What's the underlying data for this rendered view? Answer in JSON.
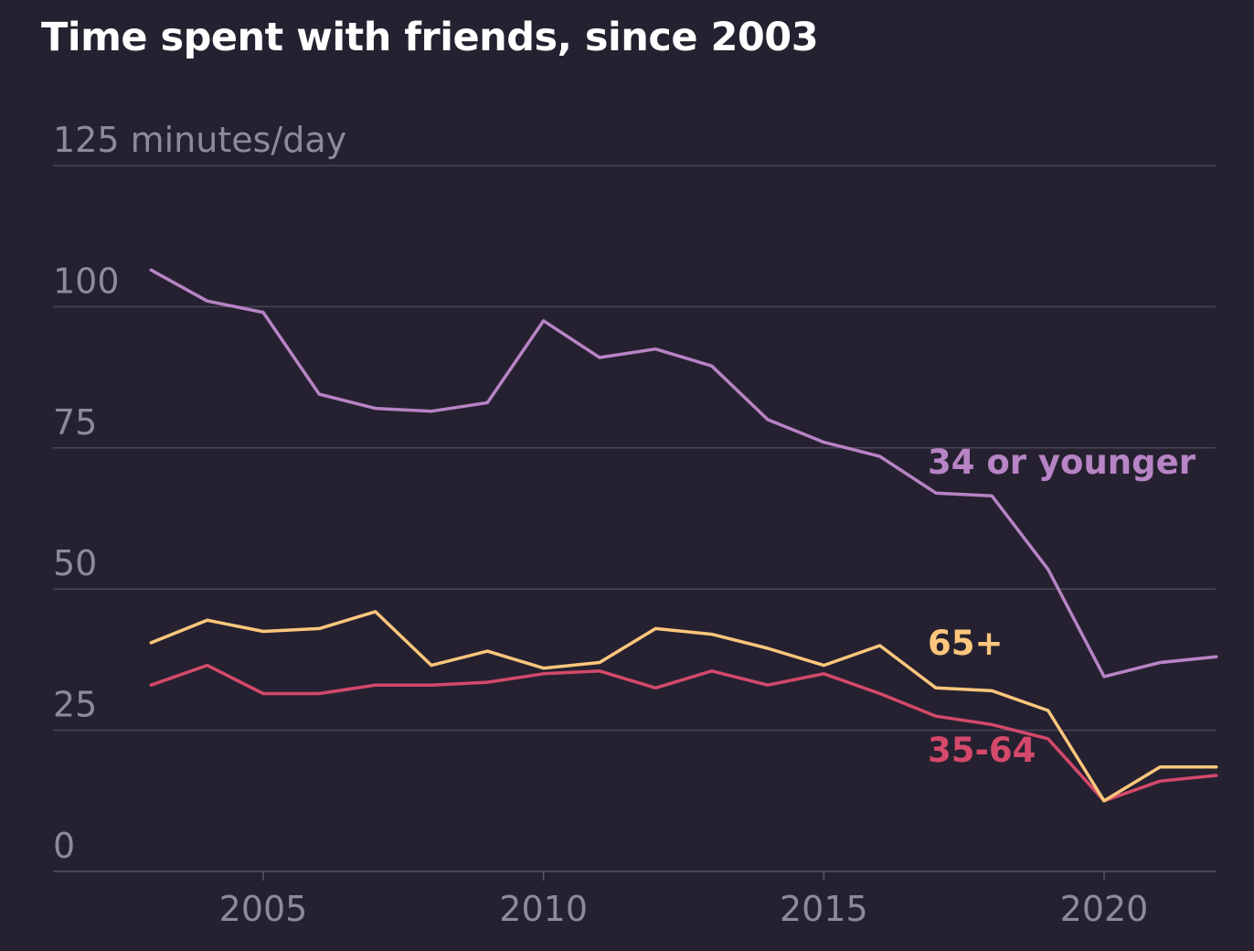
{
  "title": "Time spent with friends, since 2003",
  "colors": {
    "background": "#262130",
    "grid": "#4a4556",
    "axis_text": "#8f8a99",
    "title": "#ffffff"
  },
  "chart_data": {
    "type": "line",
    "title": "Time spent with friends, since 2003",
    "xlabel": "",
    "ylabel": "minutes/day",
    "xlim": [
      2001.25,
      2022
    ],
    "ylim": [
      0,
      125
    ],
    "y_ticks": [
      {
        "value": 0,
        "label": "0"
      },
      {
        "value": 25,
        "label": "25"
      },
      {
        "value": 50,
        "label": "50"
      },
      {
        "value": 75,
        "label": "75"
      },
      {
        "value": 100,
        "label": "100"
      },
      {
        "value": 125,
        "label": "125 minutes/day"
      }
    ],
    "x_ticks": [
      {
        "value": 2005,
        "label": "2005"
      },
      {
        "value": 2010,
        "label": "2010"
      },
      {
        "value": 2015,
        "label": "2015"
      },
      {
        "value": 2020,
        "label": "2020"
      }
    ],
    "grid": true,
    "x": [
      2003,
      2004,
      2005,
      2006,
      2007,
      2008,
      2009,
      2010,
      2011,
      2012,
      2013,
      2014,
      2015,
      2016,
      2017,
      2018,
      2019,
      2020,
      2021,
      2022
    ],
    "series": [
      {
        "name": "34 or younger",
        "color": "#b784c5",
        "label_value": 72.5,
        "values": [
          106.5,
          101,
          99,
          84.5,
          82,
          81.5,
          83,
          97.5,
          91,
          92.5,
          89.5,
          80,
          76,
          73.5,
          67,
          66.5,
          53.5,
          34.5,
          37,
          38
        ]
      },
      {
        "name": "65+",
        "color": "#fcc77d",
        "label_value": 40.5,
        "values": [
          40.5,
          44.5,
          42.5,
          43,
          46,
          36.5,
          39,
          36,
          37,
          43,
          42,
          39.5,
          36.5,
          40,
          32.5,
          32,
          28.5,
          12.5,
          18.5,
          18.5
        ]
      },
      {
        "name": "35-64",
        "color": "#d4496b",
        "label_value": 21.5,
        "values": [
          33,
          36.5,
          31.5,
          31.5,
          33,
          33,
          33.5,
          35,
          35.5,
          32.5,
          35.5,
          33,
          35,
          31.5,
          27.5,
          26,
          23.5,
          12.5,
          16,
          17
        ]
      }
    ]
  }
}
